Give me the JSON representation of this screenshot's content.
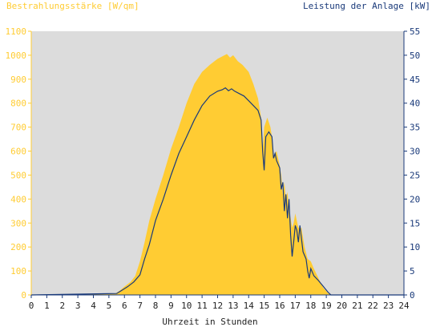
{
  "chart_data": {
    "type": "area",
    "title_left": "Bestrahlungsstärke [W/qm]",
    "title_right": "Leistung der Anlage [kW]",
    "xlabel": "Uhrzeit in Stunden",
    "x_ticks": [
      "0",
      "1",
      "2",
      "3",
      "4",
      "5",
      "6",
      "7",
      "8",
      "9",
      "10",
      "11",
      "12",
      "13",
      "14",
      "15",
      "16",
      "17",
      "18",
      "19",
      "20",
      "21",
      "22",
      "23",
      "24"
    ],
    "xlim": [
      0,
      24
    ],
    "y_left_ticks": [
      "0",
      "100",
      "200",
      "300",
      "400",
      "500",
      "600",
      "700",
      "800",
      "900",
      "1000",
      "1100"
    ],
    "y_left_lim": [
      0,
      1100
    ],
    "y_right_ticks": [
      "0",
      "5",
      "10",
      "15",
      "20",
      "25",
      "30",
      "35",
      "40",
      "45",
      "50",
      "55"
    ],
    "y_right_lim": [
      0,
      55
    ],
    "grid": false,
    "background": "#dcdcdc",
    "series": [
      {
        "name": "Bestrahlungsstärke [W/qm]",
        "axis": "left",
        "color": "#ffcc33",
        "style": "filled-area",
        "x": [
          0,
          5.4,
          5.7,
          6.0,
          6.4,
          6.7,
          7.0,
          7.3,
          7.6,
          8.0,
          8.5,
          9.0,
          9.5,
          10.0,
          10.5,
          11.0,
          11.5,
          12.0,
          12.3,
          12.6,
          12.8,
          13.0,
          13.3,
          13.6,
          14.0,
          14.3,
          14.6,
          14.8,
          14.9,
          15.0,
          15.2,
          15.4,
          15.5,
          15.6,
          15.8,
          16.0,
          16.1,
          16.2,
          16.3,
          16.4,
          16.5,
          16.6,
          16.7,
          16.8,
          16.9,
          17.0,
          17.1,
          17.2,
          17.4,
          17.6,
          17.8,
          18.0,
          18.2,
          18.5,
          18.8,
          19.1,
          19.4,
          24
        ],
        "y": [
          0,
          5,
          18,
          35,
          55,
          80,
          140,
          220,
          310,
          400,
          500,
          610,
          700,
          800,
          880,
          930,
          960,
          985,
          995,
          1005,
          990,
          1000,
          975,
          960,
          930,
          880,
          820,
          740,
          600,
          700,
          740,
          700,
          660,
          580,
          600,
          540,
          500,
          420,
          470,
          400,
          430,
          350,
          320,
          280,
          300,
          340,
          310,
          280,
          280,
          200,
          150,
          140,
          110,
          70,
          30,
          8,
          0,
          0
        ]
      },
      {
        "name": "Leistung der Anlage [kW]",
        "axis": "right",
        "color": "#1a3a7a",
        "style": "line",
        "x": [
          0,
          5.5,
          5.8,
          6.2,
          6.6,
          7.0,
          7.3,
          7.6,
          8.0,
          8.5,
          9.0,
          9.5,
          10.0,
          10.5,
          11.0,
          11.5,
          12.0,
          12.3,
          12.5,
          12.7,
          12.9,
          13.1,
          13.4,
          13.7,
          14.0,
          14.3,
          14.6,
          14.8,
          14.9,
          15.0,
          15.1,
          15.3,
          15.5,
          15.6,
          15.7,
          15.8,
          16.0,
          16.1,
          16.2,
          16.3,
          16.4,
          16.5,
          16.6,
          16.7,
          16.8,
          16.9,
          17.0,
          17.1,
          17.2,
          17.3,
          17.5,
          17.7,
          17.8,
          17.9,
          18.0,
          18.2,
          18.5,
          18.8,
          19.1,
          19.3,
          24
        ],
        "y": [
          0,
          0.3,
          0.9,
          1.7,
          2.7,
          4.2,
          7.5,
          10.5,
          15.5,
          20.0,
          25.0,
          29.5,
          33.0,
          36.5,
          39.5,
          41.5,
          42.5,
          42.8,
          43.2,
          42.6,
          43.0,
          42.5,
          42.0,
          41.5,
          40.5,
          39.5,
          38.5,
          36.5,
          30.0,
          26.0,
          33.0,
          34.0,
          33.0,
          28.5,
          29.5,
          28.0,
          26.5,
          22.0,
          23.5,
          17.5,
          21.0,
          16.0,
          20.0,
          12.5,
          8.0,
          11.0,
          14.5,
          13.5,
          11.0,
          14.5,
          9.0,
          7.5,
          5.0,
          3.5,
          5.5,
          4.0,
          3.0,
          1.8,
          0.6,
          0,
          0
        ]
      }
    ]
  },
  "colors": {
    "left_axis": "#ffcc33",
    "right_axis": "#1a3a7a",
    "plot_background": "#dcdcdc"
  }
}
